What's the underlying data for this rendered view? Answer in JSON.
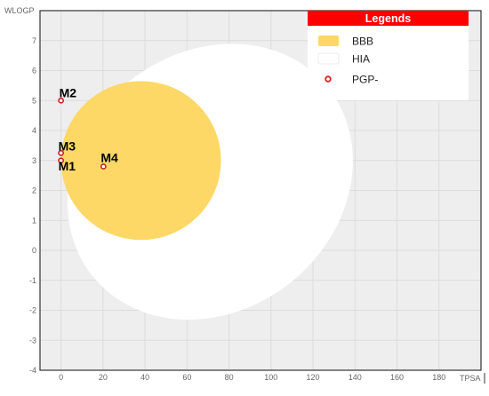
{
  "chart_data": {
    "type": "scatter",
    "title": "",
    "xlabel": "TPSA",
    "ylabel": "WLOGP",
    "xlim": [
      -10,
      200
    ],
    "ylim": [
      -4,
      8
    ],
    "x_ticks": [
      0,
      20,
      40,
      60,
      80,
      100,
      120,
      140,
      160,
      180
    ],
    "y_ticks": [
      -4,
      -3,
      -2,
      -1,
      0,
      1,
      2,
      3,
      4,
      5,
      6,
      7
    ],
    "grid": true,
    "regions": [
      {
        "name": "HIA",
        "shape": "ellipse",
        "center": [
          71.05,
          2.29
        ],
        "radii": [
          71.85,
          4.3
        ],
        "rotation_deg": -39,
        "color": "#ffffff"
      },
      {
        "name": "BBB",
        "shape": "ellipse",
        "center": [
          38.1,
          3.0
        ],
        "radii": [
          38.1,
          2.65
        ],
        "rotation_deg": 0,
        "color": "#fdd866"
      }
    ],
    "series": [
      {
        "name": "PGP-",
        "type": "scatter",
        "marker_color": "#cc2222",
        "points": [
          {
            "label": "M1",
            "x": 0.0,
            "y": 3.0
          },
          {
            "label": "M2",
            "x": 0.0,
            "y": 5.0
          },
          {
            "label": "M3",
            "x": 0.0,
            "y": 3.25
          },
          {
            "label": "M4",
            "x": 20.2,
            "y": 2.8
          }
        ]
      }
    ],
    "legend": {
      "title": "Legends",
      "placement": "top-right",
      "title_background": "#ff0000",
      "items": [
        {
          "label": "BBB",
          "swatch": "box",
          "color": "#fdd866"
        },
        {
          "label": "HIA",
          "swatch": "box",
          "color": "#ffffff"
        },
        {
          "label": "PGP-",
          "swatch": "ring",
          "color": "#cc2222"
        }
      ]
    },
    "colors": {
      "plot_background": "#eeeeee",
      "grid": "#dcdcdc",
      "axis_text": "#666666",
      "point_label": "#000000"
    }
  }
}
